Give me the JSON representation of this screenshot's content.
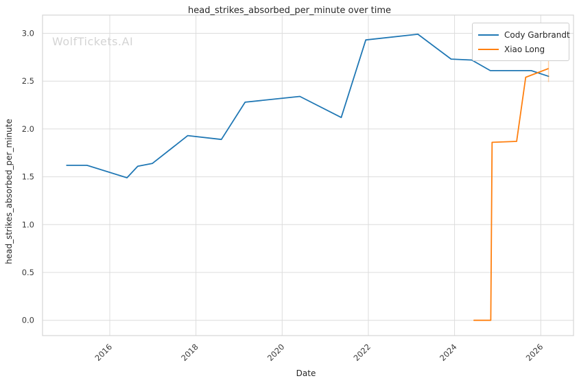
{
  "watermark": "WolfTickets.AI",
  "colors": {
    "grid": "#dcdcdc",
    "frame": "#d4d4d4",
    "tick_label": "#3b3b3b",
    "text": "#262626",
    "watermark": "#d4d4d4",
    "series_blue": "#1f77b4",
    "series_orange": "#ff7f0e"
  },
  "chart_data": {
    "type": "line",
    "title": "head_strikes_absorbed_per_minute over time",
    "xlabel": "Date",
    "ylabel": "head_strikes_absorbed_per_minute",
    "xlim": [
      2014.44,
      2026.76
    ],
    "ylim": [
      -0.16,
      3.19
    ],
    "xticks": [
      2016,
      2018,
      2020,
      2022,
      2024,
      2026
    ],
    "xtick_labels": [
      "2016",
      "2018",
      "2020",
      "2022",
      "2024",
      "2026"
    ],
    "yticks": [
      0.0,
      0.5,
      1.0,
      1.5,
      2.0,
      2.5,
      3.0
    ],
    "ytick_labels": [
      "0.0",
      "0.5",
      "1.0",
      "1.5",
      "2.0",
      "2.5",
      "3.0"
    ],
    "grid": true,
    "legend_position": "upper-right",
    "series": [
      {
        "name": "Cody Garbrandt",
        "color": "#1f77b4",
        "x": [
          2015.0,
          2015.47,
          2016.4,
          2016.65,
          2016.99,
          2017.81,
          2018.59,
          2019.14,
          2020.41,
          2021.37,
          2021.94,
          2023.15,
          2023.92,
          2024.4,
          2024.83,
          2025.78,
          2026.18
        ],
        "y": [
          1.62,
          1.62,
          1.49,
          1.61,
          1.64,
          1.93,
          1.89,
          2.28,
          2.34,
          2.12,
          2.93,
          2.99,
          2.73,
          2.72,
          2.61,
          2.61,
          2.55
        ]
      },
      {
        "name": "Xiao Long",
        "color": "#ff7f0e",
        "x": [
          2024.45,
          2024.84,
          2024.87,
          2025.44,
          2025.65,
          2026.17
        ],
        "y": [
          0.0,
          0.0,
          1.86,
          1.87,
          2.54,
          2.63
        ]
      }
    ],
    "annotations": [
      {
        "kind": "vertical-end-tick",
        "x": 2026.18,
        "y1": 2.49,
        "y2": 2.71,
        "color": "#ff7f0e",
        "opacity": 0.35
      }
    ]
  }
}
